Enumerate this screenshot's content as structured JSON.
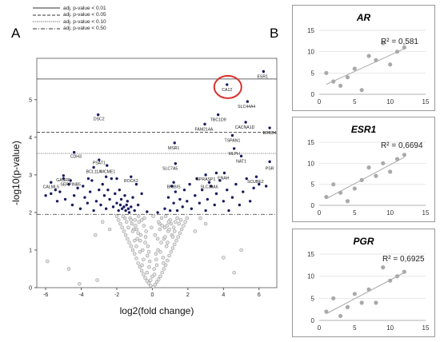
{
  "panel_a_label": "A",
  "panel_b_label": "B",
  "legend": [
    {
      "label": "adj. p-value < 0.01",
      "dash": "none"
    },
    {
      "label": "adj. p-value < 0.05",
      "dash": "4,2"
    },
    {
      "label": "adj. p-value < 0.10",
      "dash": "1,1.5"
    },
    {
      "label": "adj. p-value < 0.50",
      "dash": "5,2,1,2"
    }
  ],
  "highlight_color": "#d7322d",
  "chart_data": [
    {
      "type": "scatter",
      "title": "",
      "xlabel": "log2(fold change)",
      "ylabel": "-log10(p-value)",
      "xlim": [
        -6.5,
        7
      ],
      "ylim": [
        0,
        6.1
      ],
      "xticks": [
        -6,
        -4,
        -2,
        0,
        2,
        4,
        6
      ],
      "yticks": [
        0,
        1,
        2,
        3,
        4,
        5
      ],
      "thresholds": [
        {
          "label": "adj. p-value < 0.01",
          "y": 5.55
        },
        {
          "label": "adj. p-value < 0.05",
          "y": 4.13
        },
        {
          "label": "adj. p-value < 0.10",
          "y": 3.57
        },
        {
          "label": "adj. p-value < 0.50",
          "y": 1.95
        }
      ],
      "labeled_genes": [
        {
          "name": "ESR1",
          "x": 6.2,
          "y": 5.75
        },
        {
          "name": "CA12",
          "x": 4.2,
          "y": 5.4
        },
        {
          "name": "SLC44A4",
          "x": 5.3,
          "y": 4.95
        },
        {
          "name": "DSC2",
          "x": -3.0,
          "y": 4.62
        },
        {
          "name": "TBC1D9",
          "x": 3.7,
          "y": 4.6
        },
        {
          "name": "CACNA1D",
          "x": 5.2,
          "y": 4.4
        },
        {
          "name": "FAM214A",
          "x": 2.9,
          "y": 4.35
        },
        {
          "name": "ERBB4",
          "x": 6.6,
          "y": 4.25
        },
        {
          "name": "TSPAN1",
          "x": 4.5,
          "y": 4.05
        },
        {
          "name": "MSR1",
          "x": 1.2,
          "y": 3.85
        },
        {
          "name": "MLPH",
          "x": 4.6,
          "y": 3.7
        },
        {
          "name": "CDH3",
          "x": -4.3,
          "y": 3.62
        },
        {
          "name": "NAT1",
          "x": 5.0,
          "y": 3.5
        },
        {
          "name": "PSAT1",
          "x": -3.0,
          "y": 3.45
        },
        {
          "name": "SLC7A5",
          "x": 1.0,
          "y": 3.3
        },
        {
          "name": "BCL11A",
          "x": -3.3,
          "y": 3.22
        },
        {
          "name": "MCME1",
          "x": -2.5,
          "y": 3.22
        },
        {
          "name": "PSR",
          "x": 6.6,
          "y": 3.3
        },
        {
          "name": "GASRP",
          "x": -5.0,
          "y": 3.0
        },
        {
          "name": "ROCK2",
          "x": -1.2,
          "y": 2.98
        },
        {
          "name": "GPRASP1",
          "x": 3.0,
          "y": 3.02
        },
        {
          "name": "ENAH",
          "x": 4.0,
          "y": 3.05
        },
        {
          "name": "SCUBE2",
          "x": 5.8,
          "y": 2.95
        },
        {
          "name": "SERPINB5",
          "x": -4.6,
          "y": 2.88
        },
        {
          "name": "CALML5",
          "x": -5.7,
          "y": 2.82
        },
        {
          "name": "BRIBIS",
          "x": 1.2,
          "y": 2.82
        },
        {
          "name": "SLC39A6",
          "x": 3.2,
          "y": 2.82
        }
      ],
      "significant_points": [
        [
          -6.0,
          2.45
        ],
        [
          -5.7,
          2.5
        ],
        [
          -5.45,
          2.6
        ],
        [
          -5.35,
          2.3
        ],
        [
          -5.2,
          2.55
        ],
        [
          -5.0,
          2.9
        ],
        [
          -4.9,
          2.35
        ],
        [
          -4.7,
          2.75
        ],
        [
          -4.5,
          2.2
        ],
        [
          -4.4,
          2.45
        ],
        [
          -4.2,
          2.65
        ],
        [
          -4.05,
          2.1
        ],
        [
          -3.9,
          2.7
        ],
        [
          -3.8,
          2.4
        ],
        [
          -3.65,
          2.25
        ],
        [
          -3.5,
          2.55
        ],
        [
          -3.4,
          2.85
        ],
        [
          -3.3,
          2.05
        ],
        [
          -3.15,
          2.3
        ],
        [
          -3.0,
          2.6
        ],
        [
          -2.9,
          2.2
        ],
        [
          -2.8,
          2.75
        ],
        [
          -2.7,
          2.45
        ],
        [
          -2.6,
          2.1
        ],
        [
          -2.5,
          2.6
        ],
        [
          -2.4,
          2.35
        ],
        [
          -2.3,
          2.9
        ],
        [
          -2.2,
          2.15
        ],
        [
          -2.1,
          2.5
        ],
        [
          -2.0,
          2.25
        ],
        [
          -1.9,
          2.05
        ],
        [
          -1.85,
          2.6
        ],
        [
          -1.8,
          2.2
        ],
        [
          -1.75,
          2.35
        ],
        [
          -1.7,
          2.1
        ],
        [
          -1.6,
          2.15
        ],
        [
          -1.55,
          2.45
        ],
        [
          -1.5,
          2.05
        ],
        [
          -1.45,
          2.2
        ],
        [
          -1.4,
          2.3
        ],
        [
          -1.35,
          2.1
        ],
        [
          -1.3,
          2.0
        ],
        [
          -1.2,
          2.15
        ],
        [
          -1.1,
          2.4
        ],
        [
          -1.0,
          2.05
        ],
        [
          -0.9,
          2.75
        ],
        [
          -0.8,
          2.2
        ],
        [
          -0.6,
          2.5
        ],
        [
          -4.4,
          3.6
        ],
        [
          -3.05,
          4.6
        ],
        [
          -3.0,
          3.4
        ],
        [
          -3.3,
          3.2
        ],
        [
          -2.55,
          3.25
        ],
        [
          -5.0,
          2.98
        ],
        [
          -4.6,
          2.85
        ],
        [
          -5.7,
          2.8
        ],
        [
          -1.2,
          2.95
        ],
        [
          -2.0,
          2.9
        ],
        [
          -2.6,
          2.95
        ],
        [
          -3.6,
          2.9
        ],
        [
          0.7,
          2.1
        ],
        [
          0.9,
          2.4
        ],
        [
          1.0,
          2.05
        ],
        [
          1.1,
          2.7
        ],
        [
          1.2,
          2.25
        ],
        [
          1.3,
          2.55
        ],
        [
          1.4,
          2.05
        ],
        [
          1.55,
          2.35
        ],
        [
          1.7,
          2.15
        ],
        [
          1.8,
          2.6
        ],
        [
          1.95,
          2.3
        ],
        [
          2.1,
          2.75
        ],
        [
          2.2,
          2.1
        ],
        [
          2.4,
          2.45
        ],
        [
          2.5,
          2.9
        ],
        [
          2.65,
          2.25
        ],
        [
          2.8,
          2.6
        ],
        [
          3.0,
          2.05
        ],
        [
          3.1,
          2.35
        ],
        [
          3.3,
          2.7
        ],
        [
          3.5,
          2.2
        ],
        [
          3.6,
          2.5
        ],
        [
          3.8,
          2.85
        ],
        [
          4.0,
          2.3
        ],
        [
          4.2,
          2.6
        ],
        [
          4.3,
          2.05
        ],
        [
          4.5,
          2.4
        ],
        [
          4.7,
          2.75
        ],
        [
          4.9,
          2.2
        ],
        [
          5.1,
          2.55
        ],
        [
          5.3,
          2.9
        ],
        [
          5.5,
          2.3
        ],
        [
          5.7,
          2.65
        ],
        [
          6.0,
          2.75
        ],
        [
          6.4,
          2.7
        ],
        [
          1.2,
          2.8
        ],
        [
          1.3,
          3.3
        ],
        [
          1.25,
          3.85
        ],
        [
          3.0,
          3.0
        ],
        [
          3.2,
          2.8
        ],
        [
          3.6,
          3.05
        ],
        [
          4.05,
          3.05
        ],
        [
          3.7,
          4.6
        ],
        [
          2.95,
          4.35
        ],
        [
          4.5,
          4.05
        ],
        [
          4.6,
          3.7
        ],
        [
          5.0,
          3.5
        ],
        [
          5.25,
          4.4
        ],
        [
          5.35,
          4.95
        ],
        [
          6.6,
          4.25
        ],
        [
          6.6,
          3.35
        ],
        [
          5.85,
          2.95
        ],
        [
          4.2,
          5.4
        ],
        [
          6.25,
          5.75
        ],
        [
          0.3,
          2.0
        ],
        [
          -0.3,
          2.02
        ]
      ],
      "cloud_points": [
        [
          0.05,
          0.02
        ],
        [
          -0.1,
          0.05
        ],
        [
          0.15,
          0.08
        ],
        [
          -0.2,
          0.12
        ],
        [
          0.25,
          0.15
        ],
        [
          -0.3,
          0.18
        ],
        [
          0.35,
          0.22
        ],
        [
          -0.4,
          0.26
        ],
        [
          0.45,
          0.3
        ],
        [
          -0.5,
          0.35
        ],
        [
          0.55,
          0.4
        ],
        [
          -0.6,
          0.45
        ],
        [
          0.65,
          0.5
        ],
        [
          -0.7,
          0.55
        ],
        [
          0.75,
          0.6
        ],
        [
          -0.8,
          0.65
        ],
        [
          0.85,
          0.72
        ],
        [
          -0.9,
          0.78
        ],
        [
          0.95,
          0.85
        ],
        [
          -1.0,
          0.9
        ],
        [
          1.05,
          0.95
        ],
        [
          -1.1,
          1.0
        ],
        [
          1.15,
          1.05
        ],
        [
          -1.2,
          1.1
        ],
        [
          1.25,
          1.15
        ],
        [
          -1.3,
          1.2
        ],
        [
          1.35,
          1.25
        ],
        [
          -1.4,
          1.3
        ],
        [
          1.45,
          1.35
        ],
        [
          -1.5,
          1.4
        ],
        [
          1.55,
          1.45
        ],
        [
          -1.6,
          1.5
        ],
        [
          1.65,
          1.55
        ],
        [
          -1.7,
          1.6
        ],
        [
          1.75,
          1.65
        ],
        [
          -1.8,
          1.7
        ],
        [
          1.85,
          1.75
        ],
        [
          -1.9,
          1.8
        ],
        [
          1.95,
          1.85
        ],
        [
          -2.0,
          1.9
        ],
        [
          0.0,
          0.3
        ],
        [
          0.1,
          0.5
        ],
        [
          -0.15,
          0.7
        ],
        [
          0.2,
          0.9
        ],
        [
          -0.25,
          1.1
        ],
        [
          0.3,
          1.3
        ],
        [
          -0.35,
          1.5
        ],
        [
          0.4,
          1.7
        ],
        [
          -0.45,
          1.85
        ],
        [
          0.5,
          1.2
        ],
        [
          -0.55,
          1.0
        ],
        [
          0.6,
          0.8
        ],
        [
          -0.65,
          1.4
        ],
        [
          0.7,
          1.6
        ],
        [
          -0.75,
          1.75
        ],
        [
          0.8,
          1.1
        ],
        [
          -0.85,
          1.3
        ],
        [
          0.9,
          1.5
        ],
        [
          -0.95,
          1.65
        ],
        [
          1.0,
          1.8
        ],
        [
          -1.05,
          1.55
        ],
        [
          1.1,
          1.4
        ],
        [
          -1.15,
          1.7
        ],
        [
          1.2,
          1.6
        ],
        [
          -1.25,
          1.85
        ],
        [
          1.3,
          1.75
        ],
        [
          0.05,
          1.9
        ],
        [
          -0.05,
          1.6
        ],
        [
          0.15,
          1.4
        ],
        [
          -0.2,
          0.95
        ],
        [
          0.25,
          0.6
        ],
        [
          -0.3,
          0.4
        ],
        [
          0.35,
          1.75
        ],
        [
          -0.4,
          1.2
        ],
        [
          0.45,
          0.95
        ],
        [
          -0.5,
          0.75
        ],
        [
          0.55,
          1.65
        ],
        [
          -0.6,
          1.8
        ],
        [
          0.65,
          1.3
        ],
        [
          -0.7,
          0.95
        ],
        [
          0.75,
          1.9
        ],
        [
          -0.8,
          1.45
        ],
        [
          0.85,
          1.2
        ],
        [
          -0.9,
          1.1
        ],
        [
          0.95,
          1.55
        ],
        [
          -1.0,
          1.25
        ],
        [
          1.05,
          1.7
        ],
        [
          -1.1,
          1.5
        ],
        [
          1.15,
          1.35
        ],
        [
          -1.2,
          1.8
        ],
        [
          1.25,
          1.5
        ],
        [
          -1.35,
          1.6
        ],
        [
          1.4,
          1.85
        ],
        [
          -1.45,
          1.75
        ],
        [
          1.5,
          1.7
        ],
        [
          -1.55,
          1.85
        ],
        [
          1.6,
          1.8
        ],
        [
          -1.65,
          1.9
        ],
        [
          -3.2,
          1.4
        ],
        [
          -2.4,
          1.55
        ],
        [
          2.4,
          1.5
        ],
        [
          3.0,
          1.7
        ],
        [
          -2.8,
          1.75
        ],
        [
          2.7,
          1.85
        ],
        [
          -5.9,
          0.7
        ],
        [
          -4.7,
          0.5
        ],
        [
          -3.1,
          0.2
        ],
        [
          -4.1,
          0.1
        ],
        [
          4.0,
          0.8
        ],
        [
          4.6,
          0.4
        ],
        [
          5.0,
          1.0
        ],
        [
          -0.1,
          0.2
        ],
        [
          0.12,
          0.35
        ],
        [
          -0.18,
          0.55
        ],
        [
          0.22,
          0.75
        ],
        [
          -0.28,
          0.85
        ],
        [
          0.32,
          1.0
        ],
        [
          -0.38,
          1.35
        ],
        [
          0.42,
          1.55
        ],
        [
          -0.48,
          1.65
        ],
        [
          0.52,
          1.85
        ],
        [
          -0.58,
          0.6
        ],
        [
          0.62,
          0.65
        ],
        [
          -0.68,
          1.25
        ],
        [
          0.72,
          1.35
        ],
        [
          -0.78,
          1.9
        ],
        [
          0.82,
          1.65
        ],
        [
          -0.88,
          1.55
        ],
        [
          0.92,
          1.75
        ],
        [
          -0.98,
          1.8
        ]
      ]
    },
    {
      "type": "scatter",
      "title": "AR",
      "r2_label": "R² = 0,581",
      "xlim": [
        0,
        15
      ],
      "ylim": [
        0,
        15
      ],
      "xticks": [
        0,
        5,
        10,
        15
      ],
      "yticks": [
        0,
        5,
        10,
        15
      ],
      "x": [
        1,
        2,
        3,
        4,
        5,
        6,
        7,
        8,
        9,
        10,
        11,
        12
      ],
      "y": [
        5,
        3,
        2,
        4,
        6,
        1,
        9,
        8,
        12,
        7,
        10,
        11
      ]
    },
    {
      "type": "scatter",
      "title": "ESR1",
      "r2_label": "R² = 0,6694",
      "xlim": [
        0,
        15
      ],
      "ylim": [
        0,
        15
      ],
      "xticks": [
        0,
        5,
        10,
        15
      ],
      "yticks": [
        0,
        5,
        10,
        15
      ],
      "x": [
        1,
        2,
        3,
        4,
        5,
        6,
        7,
        8,
        9,
        10,
        11,
        12
      ],
      "y": [
        2,
        5,
        3,
        1,
        4,
        6,
        9,
        7,
        10,
        8,
        11,
        12
      ]
    },
    {
      "type": "scatter",
      "title": "PGR",
      "r2_label": "R² = 0,6925",
      "xlim": [
        0,
        15
      ],
      "ylim": [
        0,
        15
      ],
      "xticks": [
        0,
        5,
        10,
        15
      ],
      "yticks": [
        0,
        5,
        10,
        15
      ],
      "x": [
        1,
        2,
        3,
        4,
        5,
        6,
        7,
        8,
        9,
        10,
        11,
        12
      ],
      "y": [
        2,
        5,
        1,
        3,
        6,
        4,
        7,
        4,
        12,
        9,
        10,
        11
      ]
    }
  ]
}
